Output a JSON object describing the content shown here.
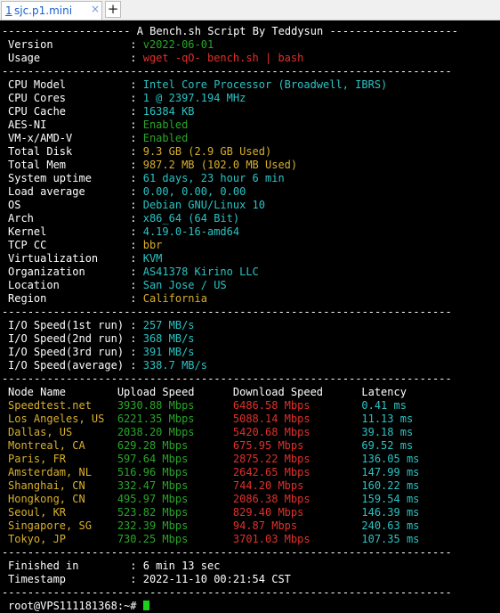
{
  "window": {
    "tab_number": "1",
    "tab_title": "sjc.p1.mini",
    "tab_close": "×",
    "new_tab": "+"
  },
  "header_line": "-------------------- A Bench.sh Script By Teddysun --------------------",
  "separator": "----------------------------------------------------------------------",
  "version": {
    "label": "Version",
    "value": "v2022-06-01"
  },
  "usage": {
    "label": "Usage",
    "value": "wget -qO- bench.sh | bash"
  },
  "system_info": [
    {
      "label": "CPU Model",
      "value": "Intel Core Processor (Broadwell, IBRS)",
      "color": "#2bc3c3"
    },
    {
      "label": "CPU Cores",
      "value": "1 @ 2397.194 MHz",
      "color": "#2bc3c3"
    },
    {
      "label": "CPU Cache",
      "value": "16384 KB",
      "color": "#2bc3c3"
    },
    {
      "label": "AES-NI",
      "value": "Enabled",
      "color": "#2aa52a"
    },
    {
      "label": "VM-x/AMD-V",
      "value": "Enabled",
      "color": "#2aa52a"
    },
    {
      "label": "Total Disk",
      "value": "9.3 GB (2.9 GB Used)",
      "color": "#d8b02c"
    },
    {
      "label": "Total Mem",
      "value": "987.2 MB (102.0 MB Used)",
      "color": "#d8b02c"
    },
    {
      "label": "System uptime",
      "value": "61 days, 23 hour 6 min",
      "color": "#2bc3c3"
    },
    {
      "label": "Load average",
      "value": "0.00, 0.00, 0.00",
      "color": "#2bc3c3"
    },
    {
      "label": "OS",
      "value": "Debian GNU/Linux 10",
      "color": "#2bc3c3"
    },
    {
      "label": "Arch",
      "value": "x86_64 (64 Bit)",
      "color": "#2bc3c3"
    },
    {
      "label": "Kernel",
      "value": "4.19.0-16-amd64",
      "color": "#2bc3c3"
    },
    {
      "label": "TCP CC",
      "value": "bbr",
      "color": "#d8b02c"
    },
    {
      "label": "Virtualization",
      "value": "KVM",
      "color": "#2bc3c3"
    },
    {
      "label": "Organization",
      "value": "AS41378 Kirino LLC",
      "color": "#2bc3c3"
    },
    {
      "label": "Location",
      "value": "San Jose / US",
      "color": "#2bc3c3"
    },
    {
      "label": "Region",
      "value": "California",
      "color": "#d8b02c"
    }
  ],
  "io_speed": [
    {
      "label": "I/O Speed(1st run)",
      "value": "257 MB/s"
    },
    {
      "label": "I/O Speed(2nd run)",
      "value": "368 MB/s"
    },
    {
      "label": "I/O Speed(3rd run)",
      "value": "391 MB/s"
    },
    {
      "label": "I/O Speed(average)",
      "value": "338.7 MB/s"
    }
  ],
  "speedtest": {
    "headers": [
      "Node Name",
      "Upload Speed",
      "Download Speed",
      "Latency"
    ],
    "rows": [
      {
        "node": "Speedtest.net",
        "upload": "3930.88 Mbps",
        "download": "6486.58 Mbps",
        "latency": "0.41 ms"
      },
      {
        "node": "Los Angeles, US",
        "upload": "6221.35 Mbps",
        "download": "5088.14 Mbps",
        "latency": "11.13 ms"
      },
      {
        "node": "Dallas, US",
        "upload": "2038.20 Mbps",
        "download": "5420.68 Mbps",
        "latency": "39.18 ms"
      },
      {
        "node": "Montreal, CA",
        "upload": "629.28 Mbps",
        "download": "675.95 Mbps",
        "latency": "69.52 ms"
      },
      {
        "node": "Paris, FR",
        "upload": "597.64 Mbps",
        "download": "2875.22 Mbps",
        "latency": "136.05 ms"
      },
      {
        "node": "Amsterdam, NL",
        "upload": "516.96 Mbps",
        "download": "2642.65 Mbps",
        "latency": "147.99 ms"
      },
      {
        "node": "Shanghai, CN",
        "upload": "332.47 Mbps",
        "download": "744.20 Mbps",
        "latency": "160.22 ms"
      },
      {
        "node": "Hongkong, CN",
        "upload": "495.97 Mbps",
        "download": "2086.38 Mbps",
        "latency": "159.54 ms"
      },
      {
        "node": "Seoul, KR",
        "upload": "523.82 Mbps",
        "download": "829.40 Mbps",
        "latency": "146.39 ms"
      },
      {
        "node": "Singapore, SG",
        "upload": "232.39 Mbps",
        "download": "94.87 Mbps",
        "latency": "240.63 ms"
      },
      {
        "node": "Tokyo, JP",
        "upload": "730.25 Mbps",
        "download": "3701.03 Mbps",
        "latency": "107.35 ms"
      }
    ]
  },
  "finished": {
    "label": "Finished in",
    "value": "6 min 13 sec"
  },
  "timestamp": {
    "label": "Timestamp",
    "value": "2022-11-10 00:21:54 CST"
  },
  "prompt": "root@VPS111181368:~#",
  "colors": {
    "cyan": "#2bc3c3",
    "green": "#2aa52a",
    "red": "#e0302a",
    "yellow": "#d8b02c",
    "cursor": "#19d119"
  }
}
